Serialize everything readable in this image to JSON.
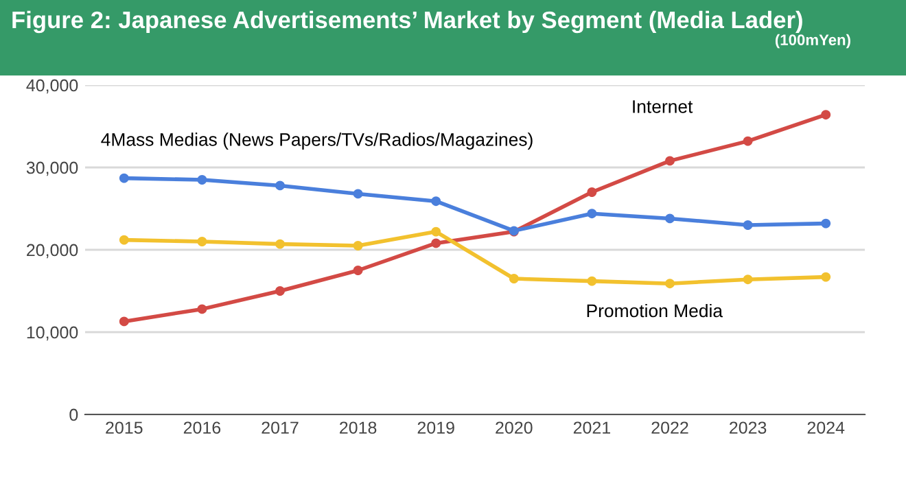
{
  "chart_data": {
    "type": "line",
    "title": "Figure 2: Japanese Advertisements’ Market by Segment (Media Lader)",
    "subtitle": "(100mYen)",
    "categories": [
      "2015",
      "2016",
      "2017",
      "2018",
      "2019",
      "2020",
      "2021",
      "2022",
      "2023",
      "2024"
    ],
    "series": [
      {
        "name": "4Mass Medias (News Papers/TVs/Radios/Magazines)",
        "color": "#4a7fdc",
        "values": [
          28700,
          28500,
          27800,
          26800,
          25900,
          22300,
          24400,
          23800,
          23000,
          23200
        ]
      },
      {
        "name": "Internet",
        "color": "#d34a45",
        "values": [
          11300,
          12800,
          15000,
          17500,
          20800,
          22200,
          27000,
          30800,
          33200,
          36400
        ]
      },
      {
        "name": "Promotion Media",
        "color": "#f2c12e",
        "values": [
          21200,
          21000,
          20700,
          20500,
          22200,
          16500,
          16200,
          15900,
          16400,
          16700
        ]
      }
    ],
    "ylim": [
      0,
      40000
    ],
    "yticks": [
      {
        "value": 0,
        "label": "0"
      },
      {
        "value": 10000,
        "label": "10,000"
      },
      {
        "value": 20000,
        "label": "20,000"
      },
      {
        "value": 30000,
        "label": "30,000"
      },
      {
        "value": 40000,
        "label": "40,000"
      }
    ],
    "grid": "y",
    "marker": "circle",
    "line_style": "solid",
    "legend": false
  }
}
